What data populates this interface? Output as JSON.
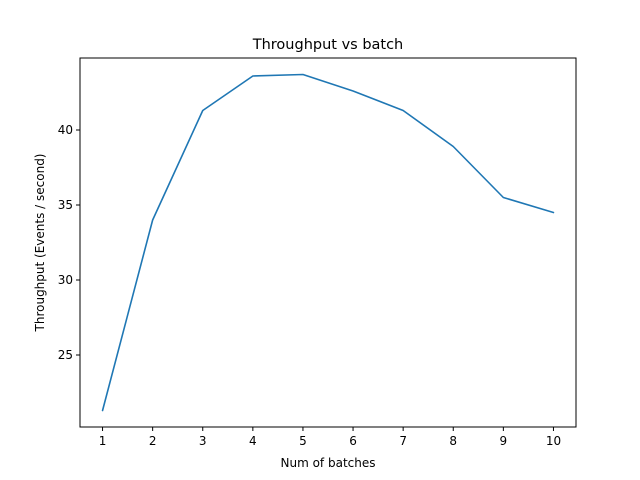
{
  "chart_data": {
    "type": "line",
    "title": "Throughput vs batch",
    "xlabel": "Num of batches",
    "ylabel": "Throughput (Events / second)",
    "x": [
      1,
      2,
      3,
      4,
      5,
      6,
      7,
      8,
      9,
      10
    ],
    "xticks": [
      1,
      2,
      3,
      4,
      5,
      6,
      7,
      8,
      9,
      10
    ],
    "yticks": [
      25,
      30,
      35,
      40
    ],
    "xlim": [
      0.55,
      10.45
    ],
    "ylim": [
      20.2,
      44.8
    ],
    "grid": false,
    "series": [
      {
        "color": "#1f77b4",
        "values": [
          21.3,
          34.0,
          41.3,
          43.6,
          43.7,
          42.6,
          41.3,
          38.9,
          35.5,
          34.5
        ]
      }
    ]
  }
}
